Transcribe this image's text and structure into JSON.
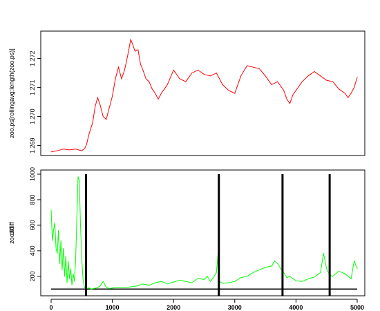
{
  "chart_data": [
    {
      "type": "line",
      "ylabel": "zoo.ps[rollingavg:length(zoo.ps)]",
      "xlim": [
        0,
        5000
      ],
      "ylim": [
        1.2688,
        1.2728
      ],
      "yticks": [
        1.269,
        1.27,
        1.271,
        1.272
      ],
      "ytick_labels": [
        "1.269",
        "1.270",
        "1.271",
        "1.272"
      ],
      "series": [
        {
          "color": "#ff0000",
          "x": [
            0,
            100,
            200,
            300,
            400,
            500,
            550,
            580,
            620,
            680,
            720,
            760,
            800,
            850,
            900,
            950,
            1000,
            1050,
            1100,
            1150,
            1200,
            1250,
            1300,
            1330,
            1370,
            1420,
            1460,
            1500,
            1550,
            1600,
            1650,
            1700,
            1750,
            1800,
            1850,
            1900,
            2000,
            2100,
            2200,
            2300,
            2400,
            2500,
            2600,
            2700,
            2800,
            2900,
            3000,
            3100,
            3200,
            3300,
            3400,
            3500,
            3600,
            3700,
            3800,
            3850,
            3900,
            3950,
            4000,
            4100,
            4200,
            4300,
            4400,
            4500,
            4600,
            4700,
            4800,
            4850,
            4900,
            4950,
            5000
          ],
          "y": [
            1.26878,
            1.26882,
            1.26888,
            1.26885,
            1.26888,
            1.26882,
            1.2689,
            1.26905,
            1.2694,
            1.2698,
            1.27035,
            1.27065,
            1.2704,
            1.27,
            1.2699,
            1.2703,
            1.2707,
            1.2713,
            1.2717,
            1.2713,
            1.2716,
            1.2721,
            1.27265,
            1.2725,
            1.27225,
            1.2723,
            1.2718,
            1.2716,
            1.2713,
            1.2712,
            1.27095,
            1.2708,
            1.2706,
            1.2708,
            1.27095,
            1.2711,
            1.2716,
            1.2713,
            1.2712,
            1.2715,
            1.2716,
            1.27145,
            1.2714,
            1.2715,
            1.2711,
            1.2709,
            1.2708,
            1.2714,
            1.27175,
            1.2717,
            1.27165,
            1.2714,
            1.2711,
            1.2712,
            1.2709,
            1.2706,
            1.27045,
            1.27075,
            1.2709,
            1.2712,
            1.2714,
            1.27155,
            1.2714,
            1.27125,
            1.2712,
            1.27095,
            1.2708,
            1.27065,
            1.2708,
            1.271,
            1.27135
          ]
        }
      ]
    },
    {
      "type": "line",
      "ylabel": "zoo.tdiff",
      "ylabel_overprint": "diff",
      "xlim": [
        0,
        5000
      ],
      "ylim": [
        80,
        1000
      ],
      "yticks": [
        200,
        400,
        600,
        800,
        1000
      ],
      "ytick_labels": [
        "200",
        "400",
        "600",
        "800",
        "1000"
      ],
      "xticks": [
        0,
        1000,
        2000,
        3000,
        4000,
        5000
      ],
      "xtick_labels": [
        "0",
        "1000",
        "2000",
        "3000",
        "4000",
        "5000"
      ],
      "series": [
        {
          "color": "#00ff00",
          "x": [
            0,
            20,
            40,
            60,
            80,
            100,
            120,
            140,
            160,
            180,
            200,
            220,
            240,
            260,
            280,
            300,
            320,
            340,
            360,
            380,
            400,
            420,
            440,
            460,
            480,
            500,
            520,
            540,
            560,
            580,
            600,
            620,
            650,
            700,
            750,
            800,
            850,
            900,
            950,
            1000,
            1100,
            1200,
            1300,
            1400,
            1500,
            1600,
            1700,
            1800,
            1900,
            2000,
            2100,
            2200,
            2300,
            2400,
            2500,
            2550,
            2600,
            2650,
            2700,
            2730,
            2750,
            2800,
            2900,
            3000,
            3100,
            3200,
            3300,
            3400,
            3500,
            3600,
            3650,
            3700,
            3750,
            3800,
            3850,
            3900,
            4000,
            4100,
            4200,
            4300,
            4400,
            4450,
            4500,
            4550,
            4600,
            4700,
            4800,
            4900,
            4950,
            5000
          ],
          "y": [
            720,
            480,
            560,
            620,
            420,
            380,
            560,
            300,
            480,
            250,
            420,
            200,
            360,
            150,
            320,
            180,
            260,
            130,
            220,
            160,
            320,
            650,
            980,
            950,
            600,
            340,
            180,
            120,
            100,
            110,
            105,
            110,
            100,
            105,
            110,
            125,
            160,
            115,
            105,
            108,
            112,
            110,
            118,
            125,
            140,
            130,
            150,
            160,
            140,
            155,
            170,
            160,
            150,
            185,
            175,
            200,
            160,
            190,
            230,
            390,
            160,
            145,
            150,
            160,
            190,
            200,
            230,
            250,
            270,
            280,
            320,
            300,
            260,
            230,
            190,
            200,
            165,
            160,
            180,
            195,
            230,
            380,
            260,
            210,
            200,
            240,
            220,
            180,
            320,
            260
          ]
        }
      ],
      "vlines": [
        {
          "color": "#000000",
          "x": [
            570,
            2740,
            3780,
            4550
          ]
        }
      ],
      "hlines": [
        {
          "color": "#000000",
          "y": 100
        }
      ]
    }
  ]
}
